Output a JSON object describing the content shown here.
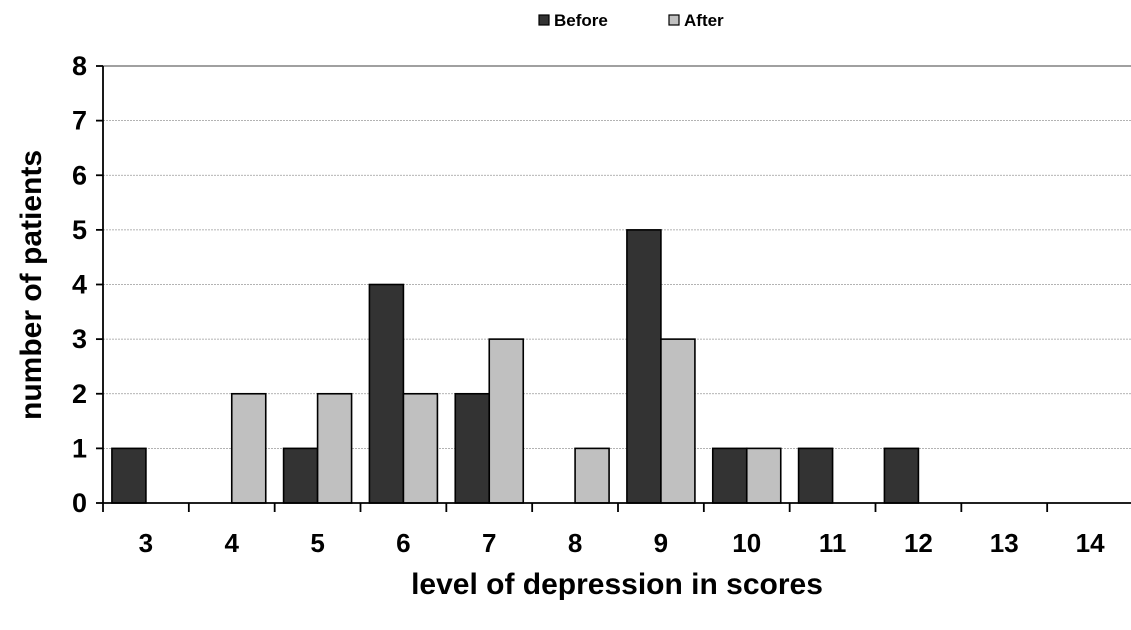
{
  "chart_data": {
    "type": "bar",
    "categories": [
      "3",
      "4",
      "5",
      "6",
      "7",
      "8",
      "9",
      "10",
      "11",
      "12",
      "13",
      "14"
    ],
    "series": [
      {
        "name": "Before",
        "values": [
          1,
          0,
          1,
          4,
          2,
          0,
          5,
          1,
          1,
          1,
          0,
          0
        ],
        "color": "#333333"
      },
      {
        "name": "After",
        "values": [
          0,
          2,
          2,
          2,
          3,
          1,
          3,
          1,
          0,
          0,
          0,
          0
        ],
        "color": "#c0c0c0"
      }
    ],
    "xlabel": "level of depression in scores",
    "ylabel": "number of patients",
    "ylim": [
      0,
      8
    ],
    "yticks": [
      "0",
      "1",
      "2",
      "3",
      "4",
      "5",
      "6",
      "7",
      "8"
    ],
    "grid": true,
    "legend_position": "top-center"
  }
}
